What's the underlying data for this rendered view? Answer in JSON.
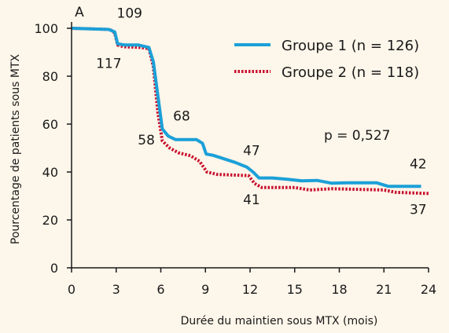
{
  "chart_data": {
    "type": "line",
    "panel_label": "A",
    "xlabel": "Durée du maintien sous MTX (mois)",
    "ylabel": "Pourcentage de patients sous MTX",
    "xlim": [
      0,
      24
    ],
    "ylim": [
      0,
      100
    ],
    "x_ticks": [
      "0",
      "3",
      "6",
      "9",
      "12",
      "15",
      "18",
      "21",
      "24"
    ],
    "y_ticks": [
      "0",
      "20",
      "40",
      "60",
      "80",
      "100"
    ],
    "grid": false,
    "legend_position": "top-right",
    "series": [
      {
        "name": "Groupe 1 (n = 126)",
        "color": "#1ba0d8",
        "style": "solid",
        "points": [
          [
            0,
            100
          ],
          [
            2.5,
            99.5
          ],
          [
            2.9,
            98.5
          ],
          [
            3.1,
            93.5
          ],
          [
            3.6,
            93
          ],
          [
            4.5,
            93
          ],
          [
            5.2,
            92
          ],
          [
            5.5,
            86
          ],
          [
            5.8,
            72
          ],
          [
            6.1,
            58
          ],
          [
            6.5,
            55
          ],
          [
            7,
            53.5
          ],
          [
            8.4,
            53.5
          ],
          [
            8.8,
            52
          ],
          [
            9.05,
            47.5
          ],
          [
            9.5,
            47
          ],
          [
            10,
            46
          ],
          [
            11,
            44
          ],
          [
            11.8,
            42
          ],
          [
            12.2,
            40
          ],
          [
            12.6,
            37.5
          ],
          [
            13.5,
            37.5
          ],
          [
            14.5,
            37
          ],
          [
            15.5,
            36.3
          ],
          [
            16.5,
            36.5
          ],
          [
            17.5,
            35.3
          ],
          [
            18.5,
            35.5
          ],
          [
            20.5,
            35.5
          ],
          [
            21.3,
            34
          ],
          [
            23.5,
            34
          ]
        ]
      },
      {
        "name": "Groupe 2 (n = 118)",
        "color": "#c8102e",
        "style": "dotted",
        "points": [
          [
            0,
            100
          ],
          [
            2.6,
            99.5
          ],
          [
            2.9,
            98
          ],
          [
            3.1,
            93
          ],
          [
            3.5,
            92.3
          ],
          [
            4.6,
            92
          ],
          [
            5.2,
            91.5
          ],
          [
            5.5,
            84
          ],
          [
            5.8,
            65
          ],
          [
            6.1,
            53
          ],
          [
            6.6,
            50
          ],
          [
            7.2,
            48
          ],
          [
            8,
            46.8
          ],
          [
            8.6,
            44.5
          ],
          [
            9.1,
            40
          ],
          [
            9.8,
            39
          ],
          [
            11.9,
            38.5
          ],
          [
            12.3,
            35.2
          ],
          [
            12.8,
            33.5
          ],
          [
            15,
            33.5
          ],
          [
            16,
            32.5
          ],
          [
            17.5,
            33
          ],
          [
            19,
            32.8
          ],
          [
            21,
            32.5
          ],
          [
            21.8,
            31.5
          ],
          [
            24,
            31
          ]
        ]
      }
    ],
    "annotations": [
      {
        "text": "109",
        "x": 3.9,
        "y": 104.5,
        "anchor": "middle"
      },
      {
        "text": "117",
        "x": 2.5,
        "y": 83.5,
        "anchor": "middle"
      },
      {
        "text": "68",
        "x": 7.4,
        "y": 61.5,
        "anchor": "middle"
      },
      {
        "text": "58",
        "x": 5.6,
        "y": 51.5,
        "anchor": "end"
      },
      {
        "text": "47",
        "x": 12.1,
        "y": 47,
        "anchor": "middle"
      },
      {
        "text": "41",
        "x": 12.1,
        "y": 26.5,
        "anchor": "middle"
      },
      {
        "text": "42",
        "x": 23.3,
        "y": 41.5,
        "anchor": "middle"
      },
      {
        "text": "37",
        "x": 23.3,
        "y": 22.5,
        "anchor": "middle"
      },
      {
        "text": "p = 0,527",
        "x": 19.2,
        "y": 53.5,
        "anchor": "middle"
      }
    ]
  }
}
